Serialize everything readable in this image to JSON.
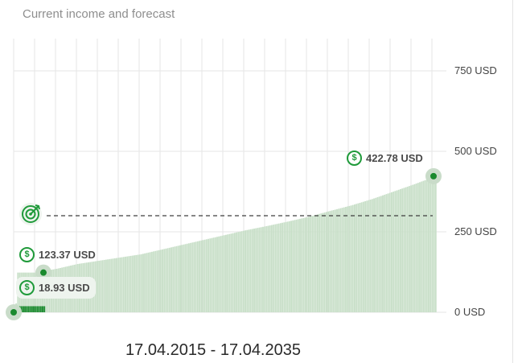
{
  "title": "Current income and forecast",
  "date_range": "17.04.2015 - 17.04.2035",
  "badges": {
    "current": "123.37 USD",
    "start": "18.93 USD",
    "end": "422.78 USD"
  },
  "icons": {
    "coin": "dollar-coin-icon",
    "target": "target-icon"
  },
  "colors": {
    "bar_forecast": "#c8dfc8",
    "bar_actual": "#1a8a2e",
    "point": "#1a8a2e",
    "point_halo": "#c9dcc9",
    "coin": "#1f9a3a",
    "grid": "#e6e6e6",
    "target_line": "#3d3d3d"
  },
  "chart_data": {
    "type": "bar",
    "x_range": [
      "17.04.2015",
      "17.04.2035"
    ],
    "y_ticks": [
      "0 USD",
      "250 USD",
      "500 USD",
      "750 USD"
    ],
    "ylim": [
      0,
      850
    ],
    "target_value": 300,
    "series": [
      {
        "values_by_year": [
          {
            "x": "2015",
            "y": 18.93
          },
          {
            "x": "2016",
            "y": 123.37
          },
          {
            "x": "2017",
            "y": 135
          },
          {
            "x": "2018",
            "y": 150
          },
          {
            "x": "2019",
            "y": 160
          },
          {
            "x": "2020",
            "y": 170
          },
          {
            "x": "2021",
            "y": 180
          },
          {
            "x": "2022",
            "y": 195
          },
          {
            "x": "2023",
            "y": 210
          },
          {
            "x": "2024",
            "y": 225
          },
          {
            "x": "2025",
            "y": 240
          },
          {
            "x": "2026",
            "y": 255
          },
          {
            "x": "2027",
            "y": 268
          },
          {
            "x": "2028",
            "y": 282
          },
          {
            "x": "2029",
            "y": 297
          },
          {
            "x": "2030",
            "y": 315
          },
          {
            "x": "2031",
            "y": 332
          },
          {
            "x": "2032",
            "y": 352
          },
          {
            "x": "2033",
            "y": 375
          },
          {
            "x": "2034",
            "y": 398
          },
          {
            "x": "2035",
            "y": 422.78
          }
        ]
      }
    ]
  }
}
